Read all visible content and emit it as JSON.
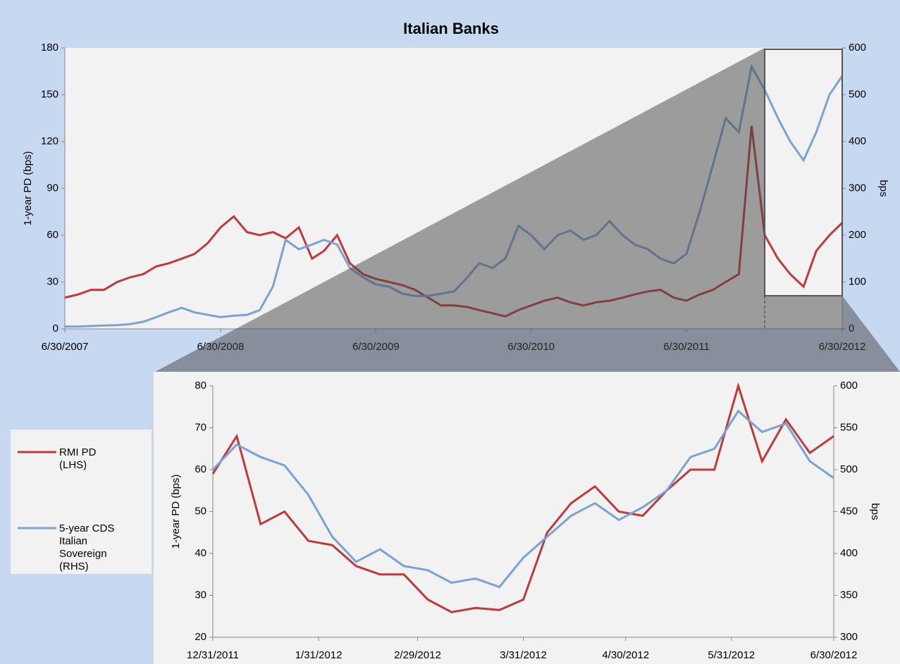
{
  "chart_data": [
    {
      "type": "line",
      "title": "Italian Banks",
      "y_label": "1-year PD (bps)",
      "y2_label": "bps",
      "x": [
        "2007-06-30",
        "2007-07-31",
        "2007-08-31",
        "2007-09-30",
        "2007-10-31",
        "2007-11-30",
        "2007-12-31",
        "2008-01-31",
        "2008-02-29",
        "2008-03-31",
        "2008-04-30",
        "2008-05-31",
        "2008-06-30",
        "2008-07-31",
        "2008-08-31",
        "2008-09-30",
        "2008-10-31",
        "2008-11-30",
        "2008-12-31",
        "2009-01-31",
        "2009-02-28",
        "2009-03-31",
        "2009-04-30",
        "2009-05-31",
        "2009-06-30",
        "2009-07-31",
        "2009-08-31",
        "2009-09-30",
        "2009-10-31",
        "2009-11-30",
        "2009-12-31",
        "2010-01-31",
        "2010-02-28",
        "2010-03-31",
        "2010-04-30",
        "2010-05-31",
        "2010-06-30",
        "2010-07-31",
        "2010-08-31",
        "2010-09-30",
        "2010-10-31",
        "2010-11-30",
        "2010-12-31",
        "2011-01-31",
        "2011-02-28",
        "2011-03-31",
        "2011-04-30",
        "2011-05-31",
        "2011-06-30",
        "2011-07-31",
        "2011-08-31",
        "2011-09-30",
        "2011-10-31",
        "2011-11-30",
        "2011-12-31",
        "2012-01-31",
        "2012-02-29",
        "2012-03-31",
        "2012-04-30",
        "2012-05-31",
        "2012-06-30"
      ],
      "series": [
        {
          "name": "RMI PD (LHS)",
          "color": "#c0393b",
          "values": [
            20,
            22,
            25,
            25,
            30,
            33,
            35,
            40,
            42,
            45,
            48,
            55,
            65,
            72,
            62,
            60,
            62,
            58,
            65,
            45,
            50,
            60,
            42,
            35,
            32,
            30,
            28,
            25,
            20,
            15,
            15,
            14,
            12,
            10,
            8,
            12,
            15,
            18,
            20,
            17,
            15,
            17,
            18,
            20,
            22,
            24,
            25,
            20,
            18,
            22,
            25,
            30,
            35,
            130,
            60,
            45,
            35,
            27,
            50,
            60,
            68
          ]
        },
        {
          "name": "5-year CDS Italian Sovereign (RHS)",
          "color": "#7aa3d4",
          "axis": "y2",
          "values": [
            5,
            5,
            6,
            7,
            8,
            10,
            15,
            25,
            35,
            45,
            35,
            30,
            25,
            28,
            30,
            40,
            90,
            190,
            170,
            180,
            190,
            180,
            130,
            110,
            95,
            90,
            75,
            70,
            70,
            75,
            80,
            110,
            140,
            130,
            150,
            220,
            200,
            170,
            200,
            210,
            190,
            200,
            230,
            200,
            180,
            170,
            150,
            140,
            160,
            250,
            350,
            450,
            420,
            560,
            510,
            450,
            400,
            360,
            420,
            500,
            540
          ]
        }
      ],
      "xlim": [
        "2007-06-30",
        "2012-06-30"
      ],
      "xticks": [
        {
          "value": "2007-06-30",
          "label": "6/30/2007"
        },
        {
          "value": "2008-06-30",
          "label": "6/30/2008"
        },
        {
          "value": "2009-06-30",
          "label": "6/30/2009"
        },
        {
          "value": "2010-06-30",
          "label": "6/30/2010"
        },
        {
          "value": "2011-06-30",
          "label": "6/30/2011"
        },
        {
          "value": "2012-06-30",
          "label": "6/30/2012"
        }
      ],
      "ylim": [
        0,
        180
      ],
      "yticks": [
        0,
        30,
        60,
        90,
        120,
        150,
        180
      ],
      "y2lim": [
        0,
        600
      ],
      "y2ticks": [
        0,
        100,
        200,
        300,
        400,
        500,
        600
      ]
    },
    {
      "type": "line",
      "y_label": "1-year PD (bps)",
      "y2_label": "bps",
      "x": [
        "2011-12-31",
        "2012-01-07",
        "2012-01-14",
        "2012-01-21",
        "2012-01-28",
        "2012-02-04",
        "2012-02-11",
        "2012-02-18",
        "2012-02-25",
        "2012-03-03",
        "2012-03-10",
        "2012-03-17",
        "2012-03-24",
        "2012-03-31",
        "2012-04-07",
        "2012-04-14",
        "2012-04-21",
        "2012-04-28",
        "2012-05-05",
        "2012-05-12",
        "2012-05-19",
        "2012-05-26",
        "2012-06-02",
        "2012-06-09",
        "2012-06-16",
        "2012-06-23",
        "2012-06-30"
      ],
      "series": [
        {
          "name": "RMI PD (LHS)",
          "color": "#c0393b",
          "values": [
            59,
            68,
            47,
            50,
            43,
            42,
            37,
            35,
            35,
            29,
            26,
            27,
            26.5,
            29,
            45,
            52,
            56,
            50,
            49,
            55,
            60,
            60,
            80,
            62,
            72,
            64,
            68
          ]
        },
        {
          "name": "5-year CDS Italian Sovereign (RHS)",
          "color": "#7aa3d4",
          "axis": "y2",
          "values": [
            500,
            530,
            515,
            505,
            470,
            420,
            390,
            405,
            385,
            380,
            365,
            370,
            360,
            395,
            420,
            445,
            460,
            440,
            455,
            475,
            515,
            525,
            570,
            545,
            555,
            510,
            490
          ]
        }
      ],
      "xlim": [
        "2011-12-31",
        "2012-06-30"
      ],
      "xticks": [
        {
          "value": "2011-12-31",
          "label": "12/31/2011"
        },
        {
          "value": "2012-01-31",
          "label": "1/31/2012"
        },
        {
          "value": "2012-02-29",
          "label": "2/29/2012"
        },
        {
          "value": "2012-03-31",
          "label": "3/31/2012"
        },
        {
          "value": "2012-04-30",
          "label": "4/30/2012"
        },
        {
          "value": "2012-05-31",
          "label": "5/31/2012"
        },
        {
          "value": "2012-06-30",
          "label": "6/30/2012"
        }
      ],
      "ylim": [
        20,
        80
      ],
      "yticks": [
        20,
        30,
        40,
        50,
        60,
        70,
        80
      ],
      "y2lim": [
        300,
        600
      ],
      "y2ticks": [
        300,
        350,
        400,
        450,
        500,
        550,
        600
      ]
    }
  ]
}
